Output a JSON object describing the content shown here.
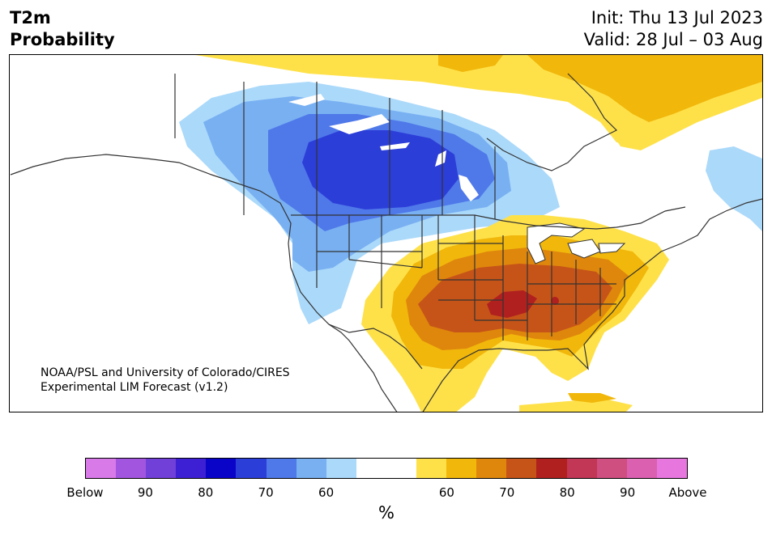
{
  "header": {
    "title_line1": "T2m",
    "title_line2": "Probability",
    "init_line": "Init: Thu 13 Jul 2023",
    "valid_line": "Valid: 28 Jul – 03 Aug"
  },
  "map": {
    "region": "North America (contiguous US, southern Canada, northern Mexico)",
    "credit_line1": "NOAA/PSL and University of Colorado/CIRES",
    "credit_line2": "Experimental LIM Forecast (v1.2)",
    "regions": [
      {
        "name": "pacific-northwest-northern-rockies-southern-canadian-prairies",
        "category": "below",
        "peak_probability": "80-90"
      },
      {
        "name": "california-west-coast",
        "category": "below",
        "peak_probability": "60-70"
      },
      {
        "name": "northern-quebec-labrador",
        "category": "below",
        "peak_probability": "60-70"
      },
      {
        "name": "arctic-archipelago-hudson-bay-north",
        "category": "above",
        "peak_probability": "60-70"
      },
      {
        "name": "great-lakes-northeast",
        "category": "above",
        "peak_probability": "60-70"
      },
      {
        "name": "southern-plains-southeast",
        "category": "above",
        "peak_probability": "70-80"
      },
      {
        "name": "mid-south-arkansas-tennessee",
        "category": "above",
        "peak_probability": "80-90"
      },
      {
        "name": "texas-northern-mexico-florida",
        "category": "above",
        "peak_probability": "60-70"
      }
    ]
  },
  "colorbar": {
    "unit": "%",
    "colors": [
      "#d97ae9",
      "#a256e0",
      "#7040d8",
      "#3e20d4",
      "#0a04c9",
      "#2c3ed8",
      "#4f78e9",
      "#78b0f2",
      "#abd9fa",
      "#ffffff",
      "#ffffff",
      "#fee149",
      "#f1b70b",
      "#df870c",
      "#c65418",
      "#b0201f",
      "#c23656",
      "#cf4f80",
      "#dc60b0",
      "#e777df"
    ],
    "ticks": [
      {
        "label": "Below",
        "frac": 0.0
      },
      {
        "label": "90",
        "frac": 0.1
      },
      {
        "label": "80",
        "frac": 0.2
      },
      {
        "label": "70",
        "frac": 0.3
      },
      {
        "label": "60",
        "frac": 0.4
      },
      {
        "label": "60",
        "frac": 0.6
      },
      {
        "label": "70",
        "frac": 0.7
      },
      {
        "label": "80",
        "frac": 0.8
      },
      {
        "label": "90",
        "frac": 0.9
      },
      {
        "label": "Above",
        "frac": 1.0
      }
    ]
  }
}
